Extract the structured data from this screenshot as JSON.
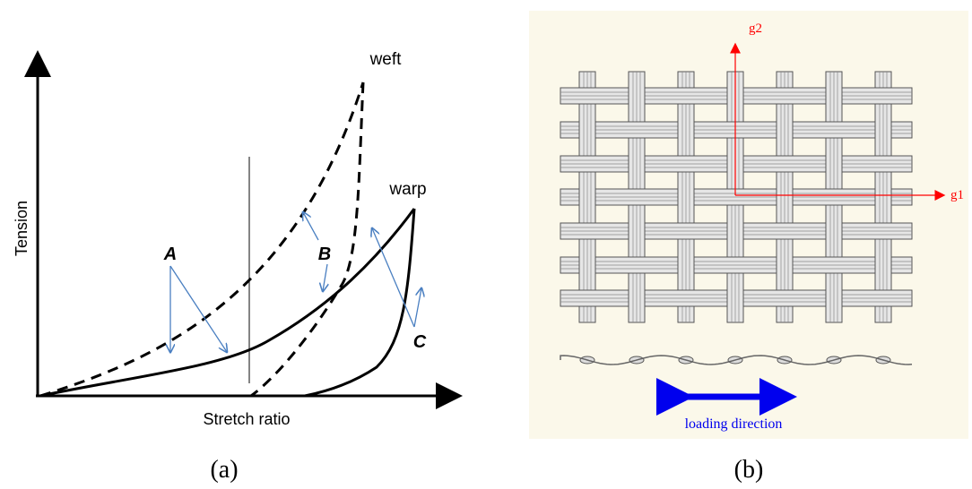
{
  "panel_a": {
    "y_axis_label": "Tension",
    "x_axis_label": "Stretch ratio",
    "curve_labels": [
      "weft",
      "warp"
    ],
    "markers": [
      "A",
      "B",
      "C"
    ],
    "caption": "(a)"
  },
  "panel_b": {
    "axis_labels": [
      "g2",
      "g1"
    ],
    "arrow_label": "loading direction",
    "caption": "(b)"
  }
}
